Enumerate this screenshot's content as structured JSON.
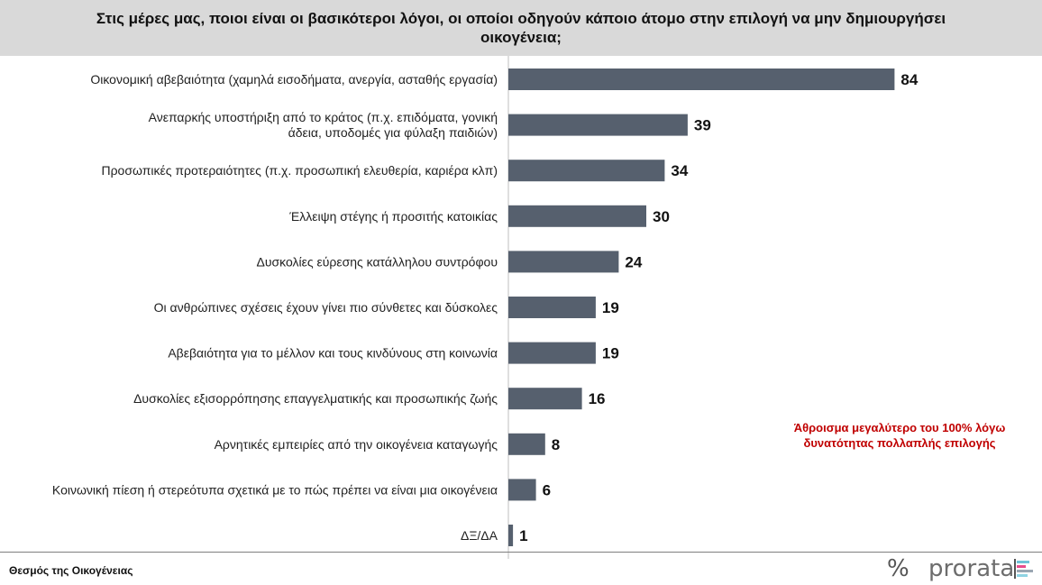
{
  "header": {
    "title_line1": "Στις μέρες μας, ποιοι είναι οι βασικότεροι λόγοι, οι οποίοι οδηγούν κάποιο άτομο στην επιλογή να μην δημιουργήσει",
    "title_line2": "οικογένεια;"
  },
  "note": {
    "line1": "Άθροισμα μεγαλύτερο του 100% λόγω",
    "line2": "δυνατότητας πολλαπλής επιλογής"
  },
  "footer": {
    "source": "Θεσμός της Οικογένειας",
    "logo_symbol": "%",
    "logo_word": "prorata"
  },
  "colors": {
    "bar": "#56606e",
    "title_bg": "#d9d9d9",
    "note": "#c00000",
    "logo_marks": [
      "#6fc3d8",
      "#e84c8b",
      "#9aa6b2",
      "#8fd3e3"
    ]
  },
  "chart_data": {
    "type": "bar",
    "orientation": "horizontal",
    "title": "Στις μέρες μας, ποιοι είναι οι βασικότεροι λόγοι, οι οποίοι οδηγούν κάποιο άτομο στην επιλογή να μην δημιουργήσει οικογένεια;",
    "categories": [
      [
        "Οικονομική αβεβαιότητα (χαμηλά εισοδήματα, ανεργία, ασταθής εργασία)"
      ],
      [
        "Ανεπαρκής υποστήριξη από το κράτος (π.χ. επιδόματα, γονική",
        "άδεια, υποδομές για φύλαξη παιδιών)"
      ],
      [
        "Προσωπικές προτεραιότητες (π.χ. προσωπική ελευθερία, καριέρα κλπ)"
      ],
      [
        "Έλλειψη στέγης ή προσιτής κατοικίας"
      ],
      [
        "Δυσκολίες εύρεσης κατάλληλου συντρόφου"
      ],
      [
        "Οι ανθρώπινες σχέσεις έχουν γίνει πιο σύνθετες και δύσκολες"
      ],
      [
        "Αβεβαιότητα για το μέλλον και τους κινδύνους στη κοινωνία"
      ],
      [
        "Δυσκολίες εξισορρόπησης επαγγελματικής και προσωπικής ζωής"
      ],
      [
        "Αρνητικές εμπειρίες από την οικογένεια καταγωγής"
      ],
      [
        "Κοινωνική πίεση ή στερεότυπα σχετικά με το πώς πρέπει να είναι μια οικογένεια"
      ],
      [
        "ΔΞ/ΔΑ"
      ]
    ],
    "values": [
      84,
      39,
      34,
      30,
      24,
      19,
      19,
      16,
      8,
      6,
      1
    ],
    "xlim": [
      0,
      100
    ],
    "grid": false,
    "data_labels": true
  }
}
